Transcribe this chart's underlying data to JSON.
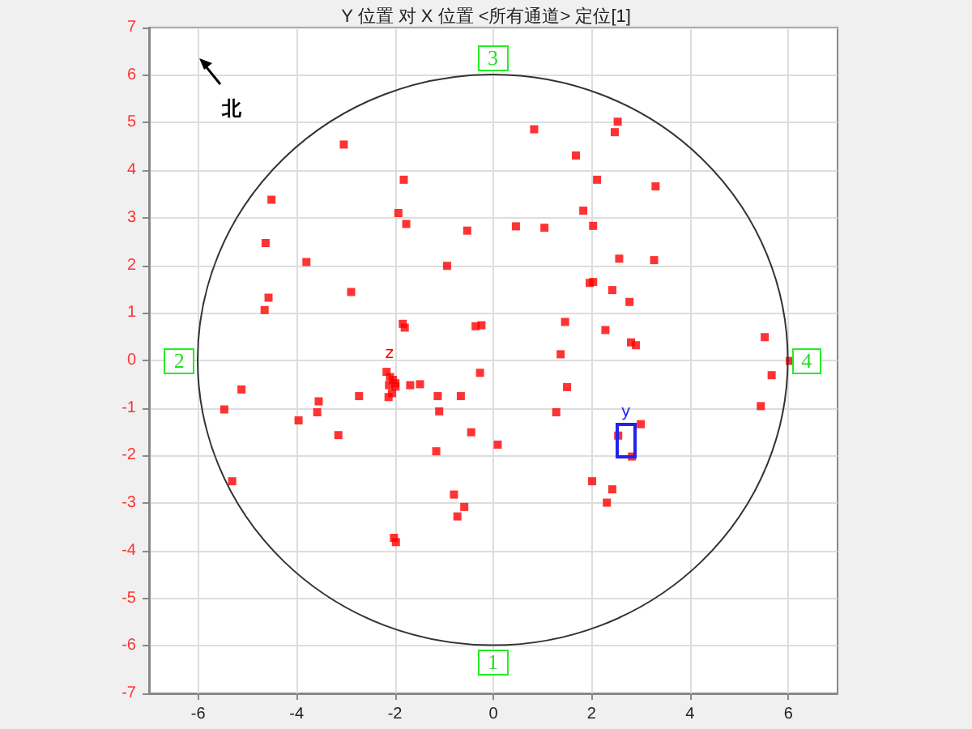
{
  "chart_data": {
    "type": "scatter",
    "title": "Y 位置 对 X 位置 <所有通道> 定位[1]",
    "xlim": [
      -7,
      7
    ],
    "xticks": [
      -6,
      -4,
      -2,
      0,
      2,
      4,
      6
    ],
    "ylim": [
      -7,
      7
    ],
    "yticks": [
      -7,
      -6,
      -5,
      -4,
      -3,
      -2,
      -1,
      0,
      1,
      2,
      3,
      4,
      5,
      6,
      7
    ],
    "grid": true,
    "marker": "square",
    "series": [
      {
        "color": "#ff0000",
        "x": [
          -3.04,
          -1.82,
          -4.51,
          -1.93,
          -1.77,
          -0.53,
          -4.63,
          -3.8,
          -0.94,
          -2.89,
          -4.57,
          -4.65,
          -1.84,
          -1.8,
          -0.36,
          -0.24,
          0.83,
          2.53,
          2.47,
          1.68,
          2.11,
          3.3,
          1.83,
          0.46,
          1.04,
          2.03,
          2.56,
          3.27,
          1.96,
          2.03,
          2.42,
          2.77,
          1.46,
          2.28,
          2.8,
          2.9,
          1.37,
          5.52,
          6.03,
          -5.12,
          -5.47,
          -5.31,
          -3.96,
          -3.55,
          -3.58,
          -3.15,
          -2.73,
          -2.17,
          -2.1,
          -2.04,
          -2.12,
          -1.99,
          -2.06,
          -2.13,
          -1.99,
          -1.69,
          -1.49,
          -1.13,
          -0.66,
          -0.27,
          -1.1,
          -0.45,
          -1.16,
          0.09,
          -0.8,
          -0.59,
          -0.73,
          -2.02,
          -1.98,
          1.5,
          1.28,
          5.66,
          5.44,
          2.54,
          3,
          2.82,
          2.01,
          2.42,
          2.31
        ],
        "values": [
          4.54,
          3.8,
          3.38,
          3.1,
          2.87,
          2.73,
          2.47,
          2.07,
          1.99,
          1.44,
          1.32,
          1.06,
          0.77,
          0.69,
          0.72,
          0.74,
          4.86,
          5.02,
          4.8,
          4.31,
          3.8,
          3.66,
          3.15,
          2.82,
          2.79,
          2.83,
          2.14,
          2.11,
          1.63,
          1.65,
          1.48,
          1.23,
          0.81,
          0.64,
          0.38,
          0.32,
          0.13,
          0.49,
          -0.01,
          -0.61,
          -1.03,
          -2.54,
          -1.26,
          -0.86,
          -1.09,
          -1.57,
          -0.75,
          -0.24,
          -0.35,
          -0.41,
          -0.52,
          -0.55,
          -0.69,
          -0.77,
          -0.48,
          -0.52,
          -0.5,
          -0.75,
          -0.75,
          -0.26,
          -1.07,
          -1.51,
          -1.91,
          -1.77,
          -2.82,
          -3.08,
          -3.28,
          -3.73,
          -3.82,
          -0.56,
          -1.09,
          -0.31,
          -0.96,
          -1.58,
          -1.34,
          -2.02,
          -2.54,
          -2.71,
          -2.99
        ]
      }
    ],
    "annotations": [
      "3",
      "2",
      "4",
      "1",
      {
        "text": "z",
        "x": -2.1,
        "y": -0.1
      },
      "y",
      "北"
    ]
  }
}
